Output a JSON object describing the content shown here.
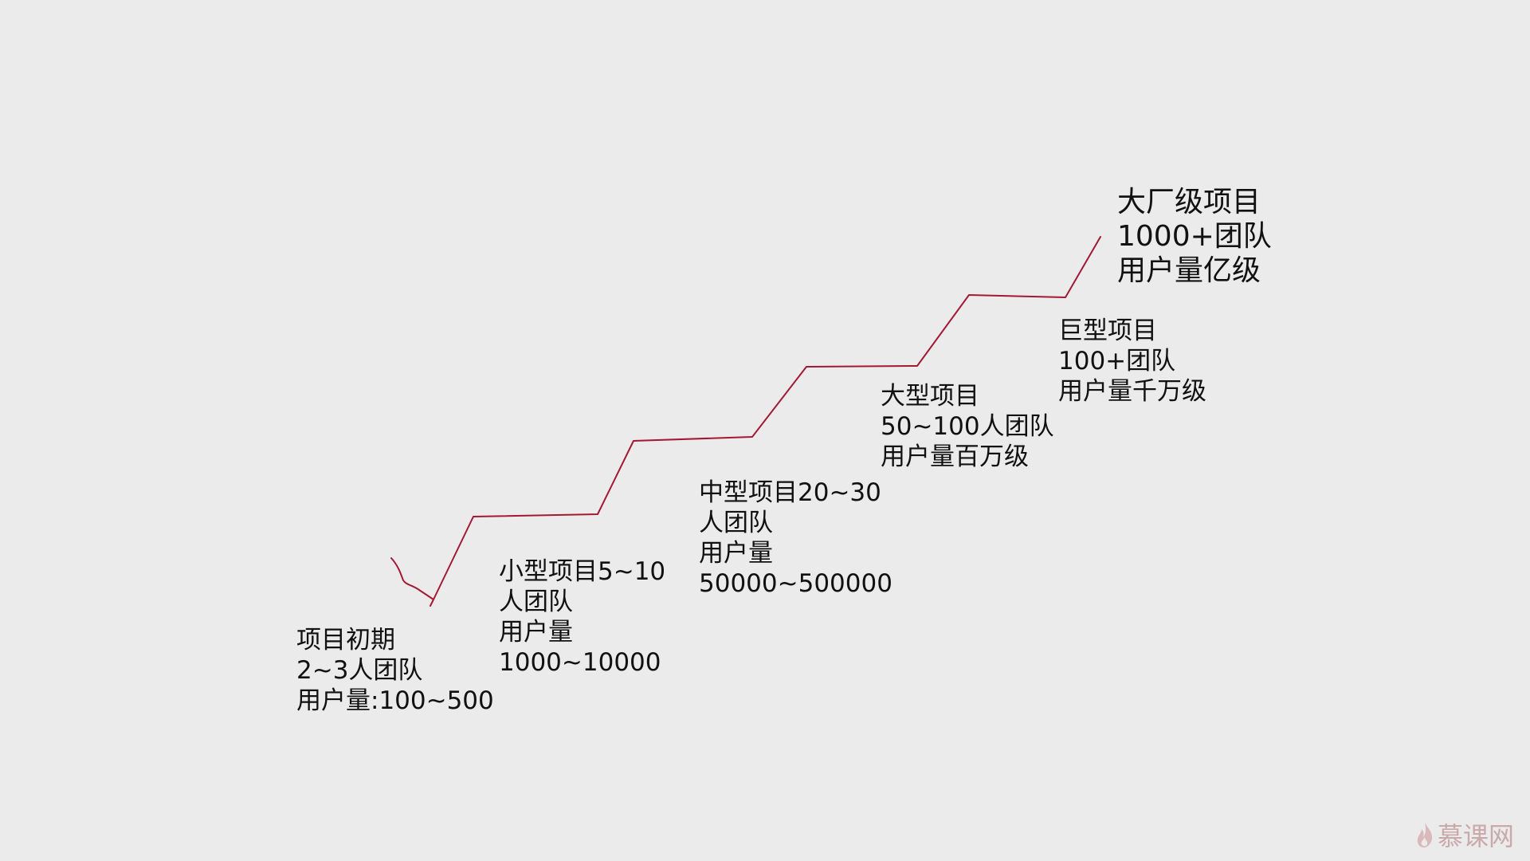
{
  "stages": [
    {
      "lines": [
        "项目初期",
        "2~3人团队",
        "用户量:100~500"
      ]
    },
    {
      "lines": [
        "小型项目5~10",
        "人团队",
        "用户量",
        "1000~10000"
      ]
    },
    {
      "lines": [
        "中型项目20~30",
        "人团队",
        "用户量",
        "50000~500000"
      ]
    },
    {
      "lines": [
        "大型项目",
        "50~100人团队",
        "用户量百万级"
      ]
    },
    {
      "lines": [
        "巨型项目",
        "100+团队",
        "用户量千万级"
      ]
    },
    {
      "lines": [
        "大厂级项目",
        "1000+团队",
        "用户量亿级"
      ]
    }
  ],
  "colors": {
    "background": "#ebebeb",
    "stair_line": "#a31835",
    "text": "#111111",
    "watermark": "#c9a9a9"
  },
  "watermark": {
    "text": "慕课网",
    "icon": "flame-icon"
  }
}
